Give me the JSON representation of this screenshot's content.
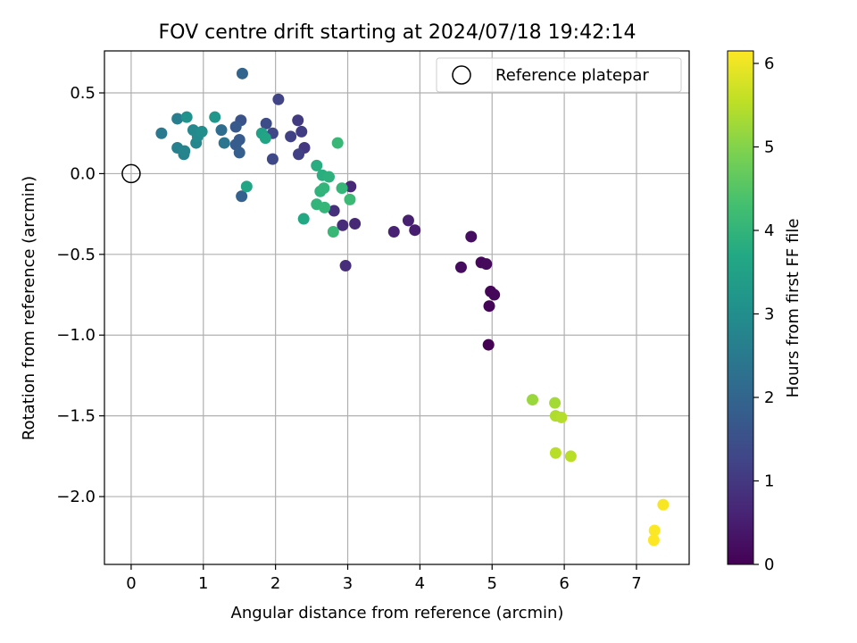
{
  "chart_data": {
    "type": "scatter",
    "title": "FOV centre drift starting at 2024/07/18 19:42:14",
    "xlabel": "Angular distance from reference (arcmin)",
    "ylabel": "Rotation from reference (arcmin)",
    "xlim": [
      -0.37,
      7.73
    ],
    "ylim": [
      -2.42,
      0.76
    ],
    "xticks": [
      "0",
      "1",
      "2",
      "3",
      "4",
      "5",
      "6",
      "7"
    ],
    "yticks": [
      "0.5",
      "0.0",
      "−0.5",
      "−1.0",
      "−1.5",
      "−2.0"
    ],
    "xtick_values": [
      0,
      1,
      2,
      3,
      4,
      5,
      6,
      7
    ],
    "ytick_values": [
      0.5,
      0.0,
      -0.5,
      -1.0,
      -1.5,
      -2.0
    ],
    "grid": true,
    "legend": {
      "placement": "upper right",
      "label": "Reference platepar"
    },
    "reference_point": {
      "x": 0,
      "y": 0
    },
    "colorbar": {
      "label": "Hours from first FF file",
      "range": [
        0,
        6.15
      ],
      "ticks": [
        "0",
        "1",
        "2",
        "3",
        "4",
        "5",
        "6"
      ],
      "tick_values": [
        0,
        1,
        2,
        3,
        4,
        5,
        6
      ],
      "colormap": "viridis"
    },
    "points": [
      {
        "x": 4.95,
        "y": -1.06,
        "h": 0.0
      },
      {
        "x": 4.96,
        "y": -0.82,
        "h": 0.05
      },
      {
        "x": 4.98,
        "y": -0.73,
        "h": 0.08
      },
      {
        "x": 5.03,
        "y": -0.75,
        "h": 0.1
      },
      {
        "x": 4.85,
        "y": -0.55,
        "h": 0.12
      },
      {
        "x": 4.92,
        "y": -0.56,
        "h": 0.15
      },
      {
        "x": 4.57,
        "y": -0.58,
        "h": 0.18
      },
      {
        "x": 4.71,
        "y": -0.39,
        "h": 0.22
      },
      {
        "x": 3.93,
        "y": -0.35,
        "h": 0.5
      },
      {
        "x": 3.84,
        "y": -0.29,
        "h": 0.55
      },
      {
        "x": 3.64,
        "y": -0.36,
        "h": 0.6
      },
      {
        "x": 3.1,
        "y": -0.31,
        "h": 0.7
      },
      {
        "x": 2.93,
        "y": -0.32,
        "h": 0.75
      },
      {
        "x": 2.97,
        "y": -0.57,
        "h": 0.8
      },
      {
        "x": 3.04,
        "y": -0.08,
        "h": 0.72
      },
      {
        "x": 2.81,
        "y": -0.23,
        "h": 0.85
      },
      {
        "x": 2.4,
        "y": 0.16,
        "h": 1.0
      },
      {
        "x": 2.31,
        "y": 0.33,
        "h": 1.05
      },
      {
        "x": 2.36,
        "y": 0.26,
        "h": 1.1
      },
      {
        "x": 2.32,
        "y": 0.12,
        "h": 1.15
      },
      {
        "x": 2.21,
        "y": 0.23,
        "h": 1.2
      },
      {
        "x": 2.04,
        "y": 0.46,
        "h": 1.25
      },
      {
        "x": 1.96,
        "y": 0.25,
        "h": 1.3
      },
      {
        "x": 1.96,
        "y": 0.09,
        "h": 1.35
      },
      {
        "x": 1.87,
        "y": 0.31,
        "h": 1.4
      },
      {
        "x": 1.52,
        "y": 0.33,
        "h": 1.6
      },
      {
        "x": 1.45,
        "y": 0.29,
        "h": 1.7
      },
      {
        "x": 1.5,
        "y": 0.21,
        "h": 1.75
      },
      {
        "x": 1.45,
        "y": 0.18,
        "h": 1.8
      },
      {
        "x": 1.5,
        "y": 0.13,
        "h": 1.85
      },
      {
        "x": 1.53,
        "y": -0.14,
        "h": 1.9
      },
      {
        "x": 1.54,
        "y": 0.62,
        "h": 2.0
      },
      {
        "x": 1.25,
        "y": 0.27,
        "h": 2.2
      },
      {
        "x": 1.29,
        "y": 0.19,
        "h": 2.4
      },
      {
        "x": 0.42,
        "y": 0.25,
        "h": 2.5
      },
      {
        "x": 0.64,
        "y": 0.34,
        "h": 2.6
      },
      {
        "x": 0.64,
        "y": 0.16,
        "h": 2.65
      },
      {
        "x": 0.73,
        "y": 0.12,
        "h": 2.7
      },
      {
        "x": 0.74,
        "y": 0.14,
        "h": 2.75
      },
      {
        "x": 0.9,
        "y": 0.19,
        "h": 2.8
      },
      {
        "x": 0.86,
        "y": 0.27,
        "h": 2.85
      },
      {
        "x": 0.92,
        "y": 0.23,
        "h": 2.9
      },
      {
        "x": 0.98,
        "y": 0.26,
        "h": 3.0
      },
      {
        "x": 0.77,
        "y": 0.35,
        "h": 3.1
      },
      {
        "x": 1.16,
        "y": 0.35,
        "h": 3.2
      },
      {
        "x": 1.81,
        "y": 0.25,
        "h": 3.5
      },
      {
        "x": 1.86,
        "y": 0.22,
        "h": 3.6
      },
      {
        "x": 1.6,
        "y": -0.08,
        "h": 3.6
      },
      {
        "x": 2.39,
        "y": -0.28,
        "h": 3.7
      },
      {
        "x": 2.57,
        "y": 0.05,
        "h": 3.8
      },
      {
        "x": 2.65,
        "y": -0.01,
        "h": 3.85
      },
      {
        "x": 2.74,
        "y": -0.02,
        "h": 3.9
      },
      {
        "x": 2.62,
        "y": -0.11,
        "h": 3.95
      },
      {
        "x": 2.67,
        "y": -0.09,
        "h": 4.0
      },
      {
        "x": 2.57,
        "y": -0.19,
        "h": 4.0
      },
      {
        "x": 2.68,
        "y": -0.21,
        "h": 4.05
      },
      {
        "x": 2.8,
        "y": -0.36,
        "h": 4.1
      },
      {
        "x": 2.92,
        "y": -0.09,
        "h": 4.05
      },
      {
        "x": 2.86,
        "y": 0.19,
        "h": 4.1
      },
      {
        "x": 3.03,
        "y": -0.16,
        "h": 4.15
      },
      {
        "x": 5.56,
        "y": -1.4,
        "h": 5.2
      },
      {
        "x": 5.87,
        "y": -1.42,
        "h": 5.3
      },
      {
        "x": 5.88,
        "y": -1.5,
        "h": 5.4
      },
      {
        "x": 5.96,
        "y": -1.51,
        "h": 5.45
      },
      {
        "x": 5.88,
        "y": -1.73,
        "h": 5.5
      },
      {
        "x": 6.09,
        "y": -1.75,
        "h": 5.5
      },
      {
        "x": 7.37,
        "y": -2.05,
        "h": 6.1
      },
      {
        "x": 7.25,
        "y": -2.21,
        "h": 6.12
      },
      {
        "x": 7.24,
        "y": -2.27,
        "h": 6.15
      }
    ]
  }
}
